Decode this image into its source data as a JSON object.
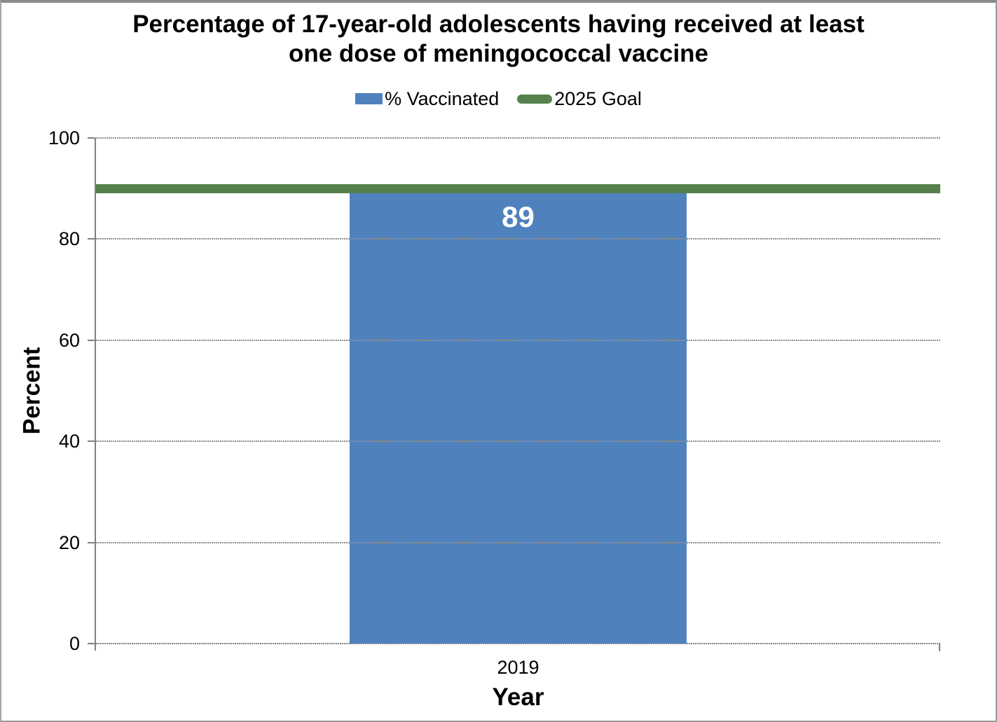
{
  "frame": {
    "background": "#FFFFFF",
    "border_color": "#8A8A8A"
  },
  "chart_data": {
    "type": "bar",
    "title": "Percentage of 17-year-old adolescents having received at least one dose of meningococcal vaccine",
    "title_lines": [
      "Percentage of 17-year-old adolescents having received at least",
      "one dose of meningococcal vaccine"
    ],
    "categories": [
      "2019"
    ],
    "series": [
      {
        "name": "% Vaccinated",
        "kind": "bar",
        "values": [
          89
        ],
        "color": "#4F81BD",
        "value_label": "89",
        "value_label_color": "#FFFFFF"
      },
      {
        "name": "2025 Goal",
        "kind": "goal-line",
        "values": [
          90
        ],
        "color": "#55814D"
      }
    ],
    "xlabel": "Year",
    "ylabel": "Percent",
    "ylim": [
      0,
      100
    ],
    "yticks": [
      0,
      20,
      40,
      60,
      80,
      100
    ],
    "grid": true,
    "legend_position": "top-center",
    "plot_background": "#FFFFFF",
    "gridline_color": "#8F8F8F",
    "axis_color": "#808080"
  }
}
